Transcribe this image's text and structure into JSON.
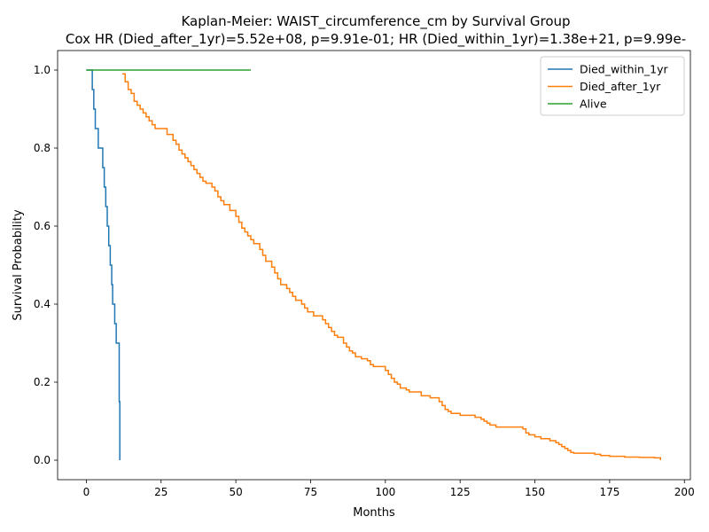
{
  "chart_data": {
    "type": "line",
    "title": "Kaplan-Meier: WAIST_circumference_cm by Survival Group",
    "subtitle": "Cox HR (Died_after_1yr)=5.52e+08, p=9.91e-01; HR (Died_within_1yr)=1.38e+21, p=9.99e-",
    "xlabel": "Months",
    "ylabel": "Survival Probability",
    "xlim": [
      -9.6,
      202
    ],
    "ylim": [
      -0.05,
      1.05
    ],
    "xticks": [
      0,
      25,
      50,
      75,
      100,
      125,
      150,
      175,
      200
    ],
    "yticks": [
      0.0,
      0.2,
      0.4,
      0.6,
      0.8,
      1.0
    ],
    "grid": false,
    "legend_position": "top-right",
    "series": [
      {
        "name": "Died_within_1yr",
        "color": "#1f77b4",
        "x": [
          0,
          2,
          2.5,
          3,
          4,
          5.5,
          6,
          6.5,
          7,
          7.5,
          8,
          8.5,
          8.8,
          9,
          9.5,
          10,
          10.5,
          11,
          11.2
        ],
        "y": [
          1.0,
          0.95,
          0.9,
          0.85,
          0.8,
          0.75,
          0.7,
          0.65,
          0.6,
          0.55,
          0.5,
          0.45,
          0.4,
          0.4,
          0.35,
          0.3,
          0.3,
          0.15,
          0.0
        ]
      },
      {
        "name": "Died_after_1yr",
        "color": "#ff7f0e",
        "x": [
          12,
          13,
          14,
          15,
          16,
          17,
          18,
          19,
          20,
          21,
          22,
          23,
          24,
          25,
          27,
          29,
          30,
          31,
          32,
          33,
          34,
          35,
          36,
          37,
          38,
          39,
          40,
          42,
          43,
          44,
          45,
          46,
          48,
          50,
          51,
          52,
          53,
          54,
          55,
          56,
          58,
          59,
          60,
          62,
          63,
          64,
          65,
          67,
          68,
          69,
          70,
          72,
          73,
          74,
          76,
          79,
          80,
          81,
          82,
          83,
          84,
          86,
          87,
          88,
          89,
          90,
          92,
          94,
          95,
          96,
          100,
          101,
          102,
          103,
          104,
          105,
          107,
          108,
          112,
          115,
          118,
          119,
          120,
          121,
          122,
          125,
          130,
          132,
          133,
          134,
          135,
          136,
          137,
          140,
          146,
          147,
          148,
          150,
          152,
          155,
          157,
          158,
          159,
          160,
          161,
          162,
          163,
          170,
          172,
          175,
          180,
          185,
          190,
          192
        ],
        "y": [
          0.99,
          0.97,
          0.95,
          0.94,
          0.92,
          0.91,
          0.9,
          0.89,
          0.88,
          0.87,
          0.86,
          0.85,
          0.85,
          0.85,
          0.835,
          0.82,
          0.81,
          0.795,
          0.785,
          0.775,
          0.765,
          0.755,
          0.745,
          0.735,
          0.725,
          0.715,
          0.71,
          0.7,
          0.69,
          0.675,
          0.665,
          0.655,
          0.64,
          0.625,
          0.61,
          0.595,
          0.585,
          0.575,
          0.565,
          0.555,
          0.54,
          0.525,
          0.51,
          0.495,
          0.48,
          0.465,
          0.45,
          0.44,
          0.43,
          0.42,
          0.41,
          0.4,
          0.39,
          0.38,
          0.37,
          0.36,
          0.35,
          0.34,
          0.33,
          0.32,
          0.315,
          0.3,
          0.29,
          0.28,
          0.275,
          0.265,
          0.26,
          0.255,
          0.245,
          0.24,
          0.23,
          0.22,
          0.21,
          0.2,
          0.195,
          0.185,
          0.18,
          0.175,
          0.165,
          0.16,
          0.15,
          0.14,
          0.13,
          0.125,
          0.12,
          0.115,
          0.11,
          0.105,
          0.1,
          0.095,
          0.09,
          0.09,
          0.085,
          0.085,
          0.08,
          0.07,
          0.065,
          0.06,
          0.055,
          0.05,
          0.045,
          0.04,
          0.035,
          0.03,
          0.025,
          0.02,
          0.018,
          0.015,
          0.012,
          0.01,
          0.008,
          0.007,
          0.006,
          0.0
        ]
      },
      {
        "name": "Alive",
        "color": "#2ca02c",
        "x": [
          0,
          55
        ],
        "y": [
          1.0,
          1.0
        ]
      }
    ]
  }
}
